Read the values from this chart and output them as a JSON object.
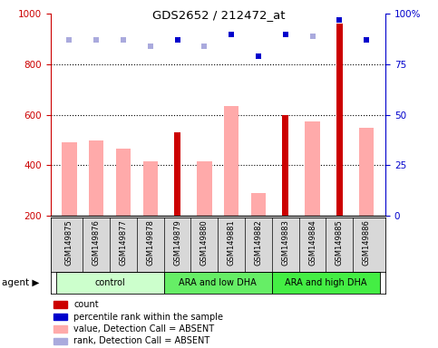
{
  "title": "GDS2652 / 212472_at",
  "samples": [
    "GSM149875",
    "GSM149876",
    "GSM149877",
    "GSM149878",
    "GSM149879",
    "GSM149880",
    "GSM149881",
    "GSM149882",
    "GSM149883",
    "GSM149884",
    "GSM149885",
    "GSM149886"
  ],
  "groups": [
    {
      "label": "control",
      "start": 0,
      "end": 3,
      "color": "#ccffcc"
    },
    {
      "label": "ARA and low DHA",
      "start": 4,
      "end": 7,
      "color": "#66ee66"
    },
    {
      "label": "ARA and high DHA",
      "start": 8,
      "end": 11,
      "color": "#44ee44"
    }
  ],
  "count_values": [
    null,
    null,
    null,
    null,
    530,
    null,
    null,
    null,
    600,
    null,
    960,
    null
  ],
  "count_color": "#cc0000",
  "value_absent": [
    490,
    500,
    465,
    415,
    null,
    415,
    635,
    290,
    null,
    575,
    null,
    550
  ],
  "value_absent_color": "#ffaaaa",
  "rank_within_pct": [
    null,
    null,
    null,
    null,
    87,
    null,
    90,
    79,
    90,
    null,
    97,
    87
  ],
  "rank_within_color": "#0000cc",
  "rank_absent_pct": [
    87,
    87,
    87,
    84,
    null,
    84,
    null,
    null,
    null,
    89,
    null,
    null
  ],
  "rank_absent_color": "#aaaadd",
  "ylim_left": [
    200,
    1000
  ],
  "ylim_right": [
    0,
    100
  ],
  "yticks_left": [
    200,
    400,
    600,
    800,
    1000
  ],
  "yticks_right": [
    0,
    25,
    50,
    75,
    100
  ],
  "grid_lines": [
    400,
    600,
    800
  ],
  "left_color": "#cc0000",
  "right_color": "#0000cc",
  "bg_color": "#ffffff",
  "legend_items": [
    {
      "color": "#cc0000",
      "label": "count"
    },
    {
      "color": "#0000cc",
      "label": "percentile rank within the sample"
    },
    {
      "color": "#ffaaaa",
      "label": "value, Detection Call = ABSENT"
    },
    {
      "color": "#aaaadd",
      "label": "rank, Detection Call = ABSENT"
    }
  ]
}
